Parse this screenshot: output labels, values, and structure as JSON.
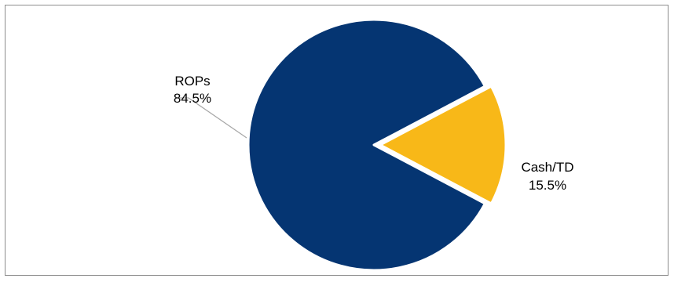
{
  "chart_data": {
    "type": "pie",
    "title": "",
    "slices": [
      {
        "label": "ROPs",
        "value": 84.5,
        "value_label": "84.5%",
        "color": "#053572"
      },
      {
        "label": "Cash/TD",
        "value": 15.5,
        "value_label": "15.5%",
        "color": "#F8B818"
      }
    ],
    "legend": "none"
  }
}
